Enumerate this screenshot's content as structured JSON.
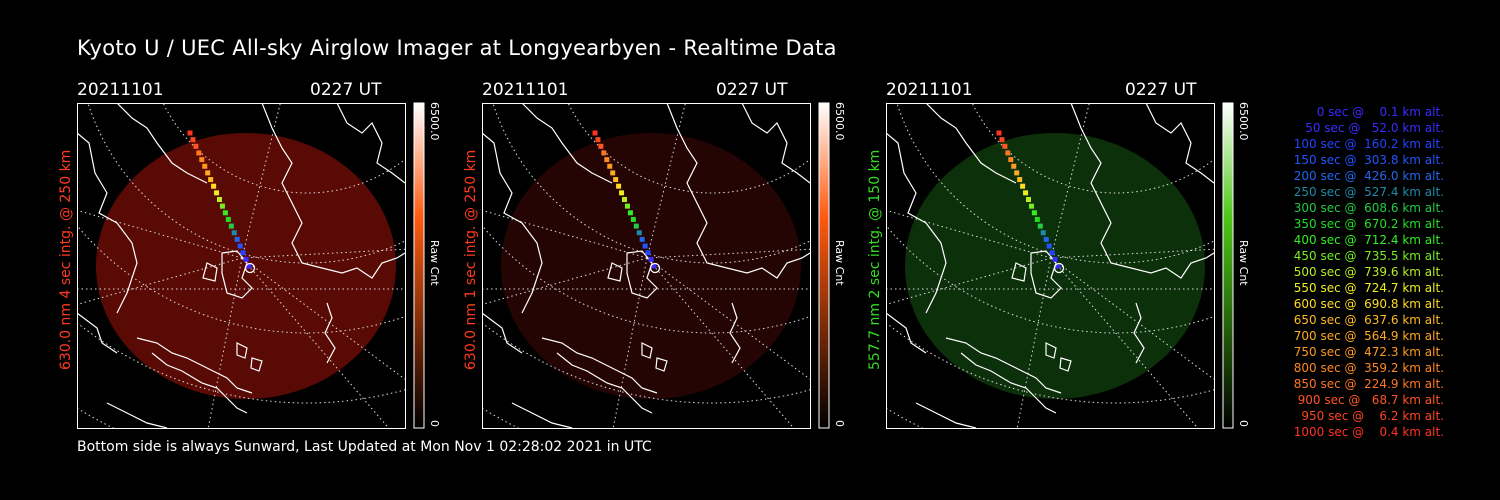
{
  "title": "Kyoto U / UEC All-sky Airglow Imager at Longyearbyen - Realtime Data",
  "footer": "Bottom side is always Sunward, Last Updated at Mon Nov  1 02:28:02 2021 in UTC",
  "panels": [
    {
      "date": "20211101",
      "time": "0227 UT",
      "side_label": "630.0 nm 4 sec intg. @ 250 km",
      "label_color": "#ff3b1f",
      "colorbar_max": "6500.0",
      "colorbar_min": "0",
      "colorbar_unit": "Raw Cnt",
      "glow_color": "#5a0a05",
      "colorbar_top_color": "#ffffff",
      "colorbar_mid_color": "#ff5a10",
      "colorbar_bottom_color": "#000000"
    },
    {
      "date": "20211101",
      "time": "0227 UT",
      "side_label": "630.0 nm 1 sec intg. @ 250 km",
      "label_color": "#ff3b1f",
      "colorbar_max": "6500.0",
      "colorbar_min": "0",
      "colorbar_unit": "Raw Cnt",
      "glow_color": "#240503",
      "colorbar_top_color": "#ffffff",
      "colorbar_mid_color": "#ff5a10",
      "colorbar_bottom_color": "#000000"
    },
    {
      "date": "20211101",
      "time": "0227 UT",
      "side_label": "557.7 nm 2 sec intg. @ 150 km",
      "label_color": "#33dd22",
      "colorbar_max": "6500.0",
      "colorbar_min": "0",
      "colorbar_unit": "Raw Cnt",
      "glow_color": "#0c300a",
      "colorbar_top_color": "#ffffff",
      "colorbar_mid_color": "#4ec818",
      "colorbar_bottom_color": "#000000"
    }
  ],
  "legend": [
    {
      "text": "0 sec @    0.1 km alt.",
      "color": "#3b2bff"
    },
    {
      "text": "50 sec @   52.0 km alt.",
      "color": "#3b2bff"
    },
    {
      "text": "100 sec @  160.2 km alt.",
      "color": "#2244ff"
    },
    {
      "text": "150 sec @  303.8 km alt.",
      "color": "#2255ff"
    },
    {
      "text": "200 sec @  426.0 km alt.",
      "color": "#2266ee"
    },
    {
      "text": "250 sec @  527.4 km alt.",
      "color": "#1d8aa8"
    },
    {
      "text": "300 sec @  608.6 km alt.",
      "color": "#22cc44"
    },
    {
      "text": "350 sec @  670.2 km alt.",
      "color": "#22dd22"
    },
    {
      "text": "400 sec @  712.4 km alt.",
      "color": "#33ee22"
    },
    {
      "text": "450 sec @  735.5 km alt.",
      "color": "#77ee22"
    },
    {
      "text": "500 sec @  739.6 km alt.",
      "color": "#bbee22"
    },
    {
      "text": "550 sec @  724.7 km alt.",
      "color": "#eeee22"
    },
    {
      "text": "600 sec @  690.8 km alt.",
      "color": "#ffdd22"
    },
    {
      "text": "650 sec @  637.6 km alt.",
      "color": "#ffbb22"
    },
    {
      "text": "700 sec @  564.9 km alt.",
      "color": "#ffaa22"
    },
    {
      "text": "750 sec @  472.3 km alt.",
      "color": "#ff9922"
    },
    {
      "text": "800 sec @  359.2 km alt.",
      "color": "#ff8822"
    },
    {
      "text": "850 sec @  224.9 km alt.",
      "color": "#ff7722"
    },
    {
      "text": "900 sec @   68.7 km alt.",
      "color": "#ff5522"
    },
    {
      "text": "950 sec @    6.2 km alt.",
      "color": "#ff4422"
    },
    {
      "text": "1000 sec @    0.4 km alt.",
      "color": "#ff3322"
    }
  ]
}
